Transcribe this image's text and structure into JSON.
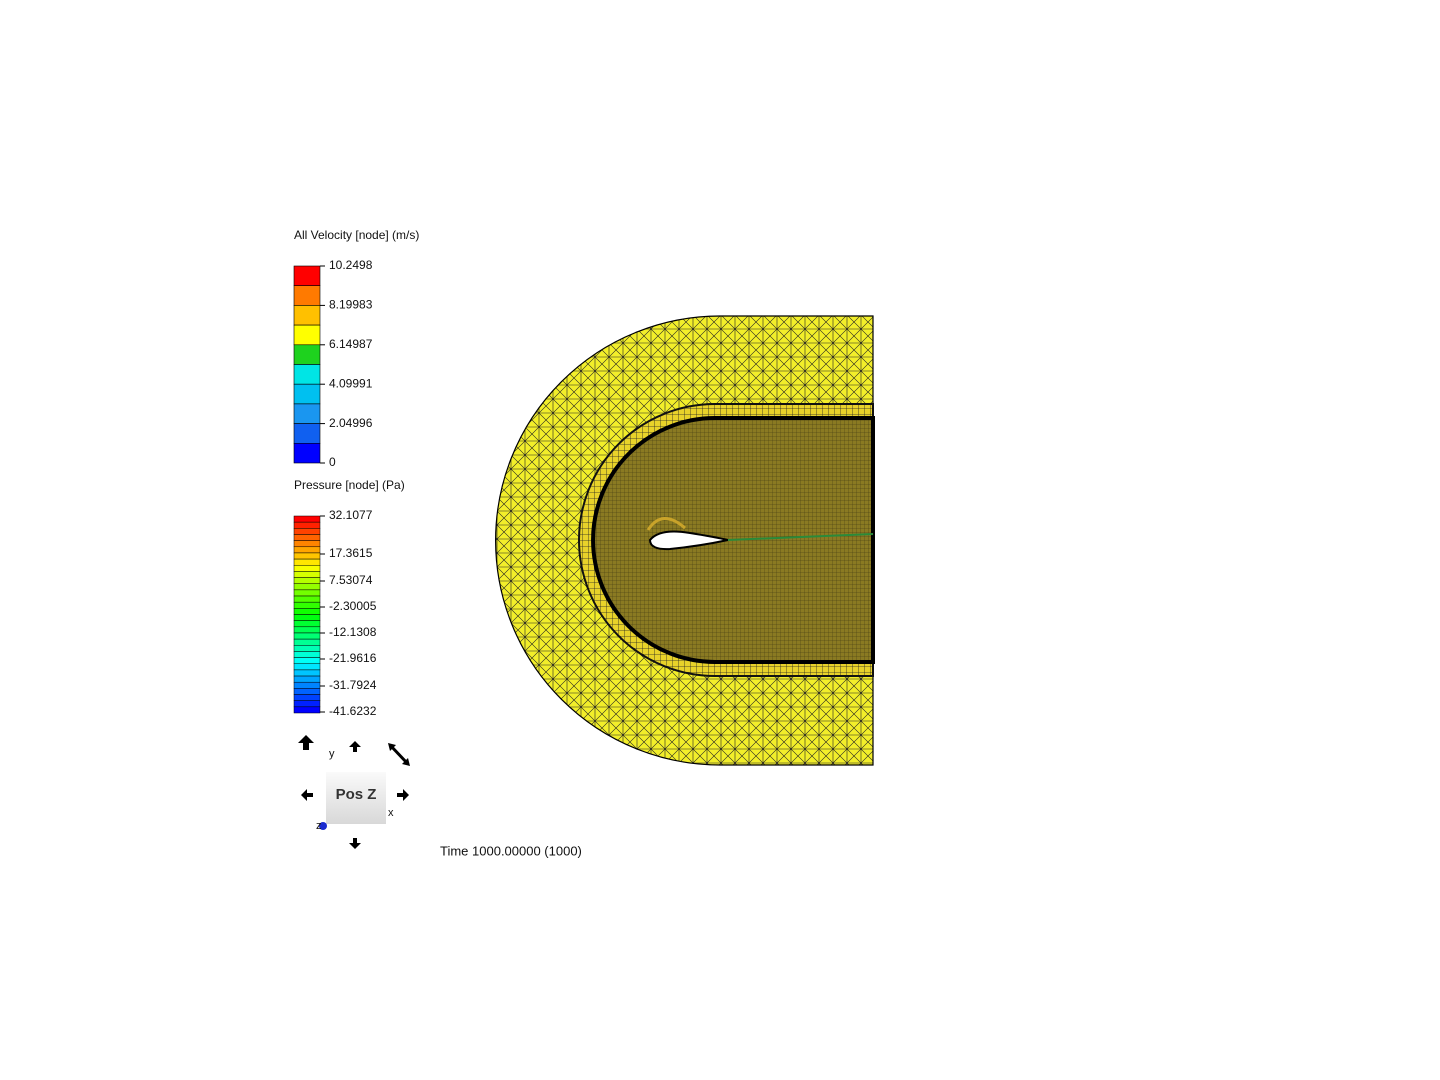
{
  "legends": [
    {
      "title": "All Velocity [node] (m/s)",
      "labels": [
        "10.2498",
        "8.19983",
        "6.14987",
        "4.09991",
        "2.04996",
        "0"
      ]
    },
    {
      "title": "Pressure [node] (Pa)",
      "labels": [
        "32.1077",
        "17.3615",
        "7.53074",
        "-2.30005",
        "-12.1308",
        "-21.9616",
        "-31.7924",
        "-41.6232"
      ]
    }
  ],
  "view_cube": {
    "face": "Pos Z",
    "axis_labels": [
      "y",
      "x",
      "z"
    ]
  },
  "time": "Time 1000.00000 (1000)"
}
